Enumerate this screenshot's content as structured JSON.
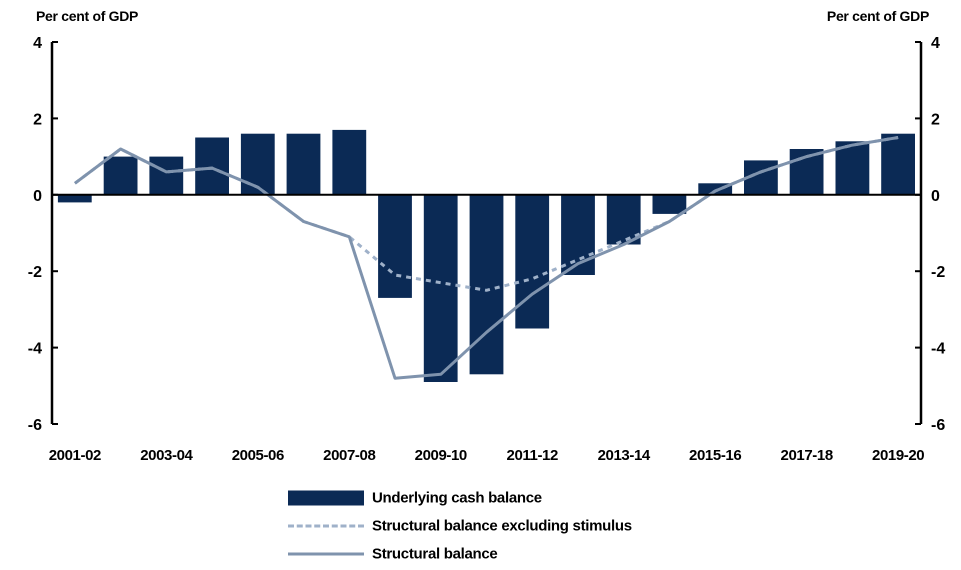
{
  "chart_data": {
    "type": "bar",
    "y_axis_label_left": "Per cent of GDP",
    "y_axis_label_right": "Per cent of GDP",
    "ylim": [
      -6,
      4
    ],
    "yticks": [
      4,
      2,
      0,
      -2,
      -4,
      -6
    ],
    "ytick_labels": [
      "4",
      "2",
      "0",
      "-2",
      "-4",
      "-6"
    ],
    "categories": [
      "2001-02",
      "2002-03",
      "2003-04",
      "2004-05",
      "2005-06",
      "2006-07",
      "2007-08",
      "2008-09",
      "2009-10",
      "2010-11",
      "2011-12",
      "2012-13",
      "2013-14",
      "2014-15",
      "2015-16",
      "2016-17",
      "2017-18",
      "2018-19",
      "2019-20"
    ],
    "x_tick_labels": [
      "2001-02",
      "2003-04",
      "2005-06",
      "2007-08",
      "2009-10",
      "2011-12",
      "2013-14",
      "2015-16",
      "2017-18",
      "2019-20"
    ],
    "series": [
      {
        "name": "Underlying cash balance",
        "type": "bar",
        "color": "#0b2a55",
        "values": [
          -0.2,
          1.0,
          1.0,
          1.5,
          1.6,
          1.6,
          1.7,
          -2.7,
          -4.9,
          -4.7,
          -3.5,
          -2.1,
          -1.3,
          -0.5,
          0.3,
          0.9,
          1.2,
          1.4,
          1.6
        ]
      },
      {
        "name": "Structural balance excluding stimulus",
        "type": "line",
        "style": "dashed",
        "color": "#9fb1c9",
        "values": [
          0.3,
          1.2,
          0.6,
          0.7,
          0.2,
          -0.7,
          -1.1,
          -2.1,
          -2.3,
          -2.5,
          -2.2,
          -1.7,
          -1.2,
          -0.7,
          0.1,
          0.6,
          1.0,
          1.3,
          1.5
        ]
      },
      {
        "name": "Structural balance",
        "type": "line",
        "style": "solid",
        "color": "#7f93ad",
        "values": [
          0.3,
          1.2,
          0.6,
          0.7,
          0.2,
          -0.7,
          -1.1,
          -4.8,
          -4.7,
          -3.6,
          -2.6,
          -1.8,
          -1.3,
          -0.7,
          0.1,
          0.6,
          1.0,
          1.3,
          1.5
        ]
      }
    ],
    "grid": false,
    "legend_position": "bottom"
  }
}
